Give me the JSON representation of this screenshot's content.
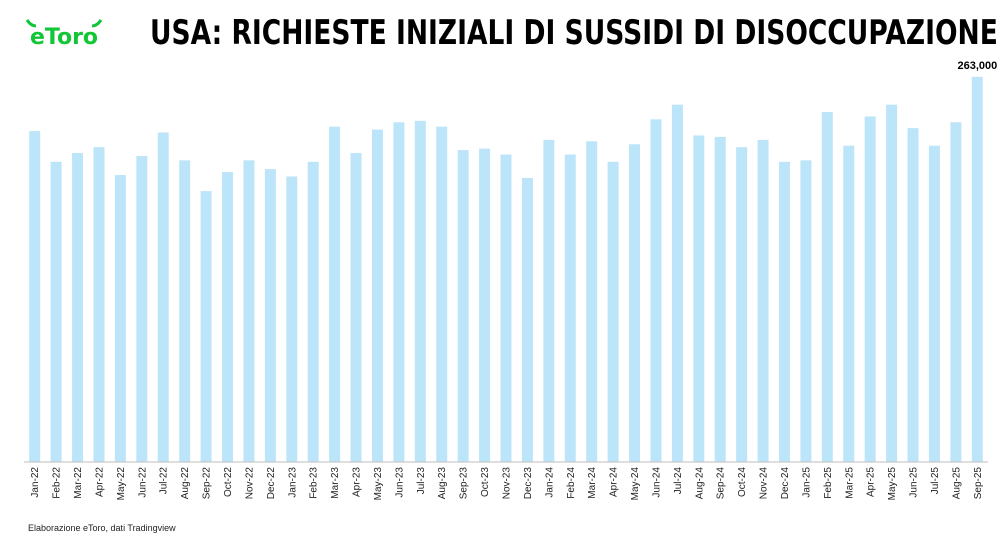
{
  "title": "USA: RICHIESTE INIZIALI DI SUSSIDI DI DISOCCUPAZIONE",
  "logo_text": "eToro",
  "source": "Elaborazione eToro, dati Tradingview",
  "colors": {
    "bar": "#bde5fa",
    "logo": "#13c636",
    "axis": "#bfbfbf"
  },
  "chart_data": {
    "type": "bar",
    "title": "USA: RICHIESTE INIZIALI DI SUSSIDI DI DISOCCUPAZIONE",
    "xlabel": "",
    "ylabel": "",
    "ylim": [
      0,
      295000
    ],
    "grid": false,
    "categories": [
      "Jan-22",
      "Feb-22",
      "Mar-22",
      "Apr-22",
      "May-22",
      "Jun-22",
      "Jul-22",
      "Aug-22",
      "Sep-22",
      "Oct-22",
      "Nov-22",
      "Dec-22",
      "Jan-23",
      "Feb-23",
      "Mar-23",
      "Apr-23",
      "May-23",
      "Jun-23",
      "Jul-23",
      "Aug-23",
      "Sep-23",
      "Oct-23",
      "Nov-23",
      "Dec-23",
      "Jan-24",
      "Feb-24",
      "Mar-24",
      "Apr-24",
      "May-24",
      "Jun-24",
      "Jul-24",
      "Aug-24",
      "Sep-24",
      "Oct-24",
      "Nov-24",
      "Dec-24",
      "Jan-25",
      "Feb-25",
      "Mar-25",
      "Apr-25",
      "May-25",
      "Jun-25",
      "Jul-25",
      "Aug-25",
      "Sep-25"
    ],
    "values": [
      226000,
      205000,
      211000,
      215000,
      196000,
      209000,
      225000,
      206000,
      185000,
      198000,
      206000,
      200000,
      195000,
      205000,
      229000,
      211000,
      227000,
      232000,
      233000,
      229000,
      213000,
      214000,
      210000,
      194000,
      220000,
      210000,
      219000,
      205000,
      217000,
      234000,
      244000,
      223000,
      222000,
      215000,
      220000,
      205000,
      206000,
      239000,
      216000,
      236000,
      244000,
      228000,
      216000,
      232000,
      263000
    ],
    "data_labels": [
      {
        "index": 44,
        "text": "263,000"
      }
    ]
  }
}
